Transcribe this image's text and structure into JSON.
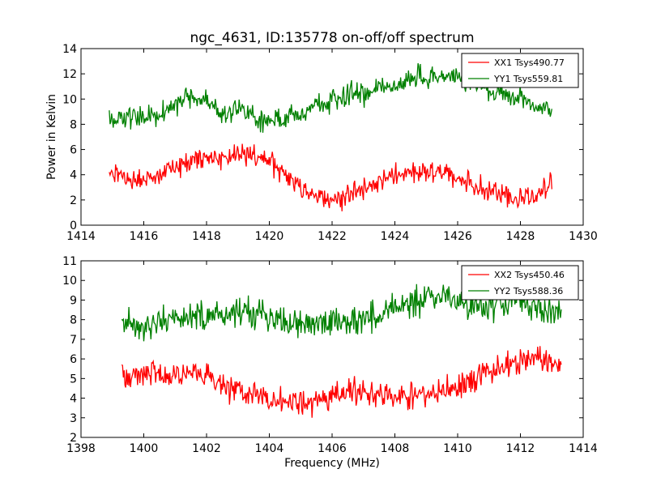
{
  "title": "ngc_4631, ID:135778 on-off/off spectrum",
  "chart_data": [
    {
      "type": "line",
      "title": "ngc_4631, ID:135778 on-off/off spectrum",
      "xlabel": "",
      "ylabel": "Power in Kelvin",
      "xlim": [
        1414,
        1430
      ],
      "ylim": [
        0,
        14
      ],
      "xticks": [
        "1414",
        "1416",
        "1418",
        "1420",
        "1422",
        "1424",
        "1426",
        "1428",
        "1430"
      ],
      "yticks": [
        "0",
        "2",
        "4",
        "6",
        "8",
        "10",
        "12",
        "14"
      ],
      "grid": false,
      "legend": "top-right",
      "x_range": [
        1414.9,
        1429.0
      ],
      "series": [
        {
          "name": "XX1 Tsys490.77",
          "color": "#ff0000",
          "x": [
            1415.0,
            1415.5,
            1416.0,
            1416.5,
            1417.0,
            1417.5,
            1418.0,
            1418.5,
            1419.0,
            1419.5,
            1420.0,
            1420.5,
            1421.0,
            1421.5,
            1422.0,
            1422.5,
            1423.0,
            1423.5,
            1424.0,
            1424.5,
            1425.0,
            1425.5,
            1426.0,
            1426.5,
            1427.0,
            1427.5,
            1428.0,
            1428.5,
            1429.0
          ],
          "values": [
            4.0,
            3.8,
            3.6,
            3.8,
            4.5,
            5.3,
            5.4,
            5.3,
            5.6,
            5.4,
            5.0,
            4.2,
            3.0,
            2.4,
            2.0,
            2.3,
            2.9,
            3.4,
            3.9,
            4.2,
            4.3,
            4.2,
            3.8,
            3.2,
            2.7,
            2.2,
            2.0,
            2.3,
            3.3
          ],
          "noise": 0.75
        },
        {
          "name": "YY1 Tsys559.81",
          "color": "#008000",
          "x": [
            1415.0,
            1415.5,
            1416.0,
            1416.5,
            1417.0,
            1417.5,
            1418.0,
            1418.5,
            1419.0,
            1419.5,
            1420.0,
            1420.5,
            1421.0,
            1421.5,
            1422.0,
            1422.5,
            1423.0,
            1423.5,
            1424.0,
            1424.5,
            1425.0,
            1425.5,
            1426.0,
            1426.5,
            1427.0,
            1427.5,
            1428.0,
            1428.5,
            1429.0
          ],
          "values": [
            8.3,
            8.6,
            8.8,
            8.7,
            9.6,
            10.2,
            9.8,
            8.8,
            9.4,
            8.3,
            8.3,
            8.5,
            8.8,
            9.6,
            9.7,
            10.4,
            10.4,
            11.0,
            11.1,
            11.5,
            11.8,
            11.8,
            11.7,
            11.3,
            10.6,
            10.3,
            10.2,
            9.5,
            8.7
          ],
          "noise": 0.75
        }
      ]
    },
    {
      "type": "line",
      "title": "",
      "xlabel": "Frequency (MHz)",
      "ylabel": "",
      "xlim": [
        1398,
        1414
      ],
      "ylim": [
        2,
        11
      ],
      "xticks": [
        "1398",
        "1400",
        "1402",
        "1404",
        "1406",
        "1408",
        "1410",
        "1412",
        "1414"
      ],
      "yticks": [
        "2",
        "3",
        "4",
        "5",
        "6",
        "7",
        "8",
        "9",
        "10",
        "11"
      ],
      "grid": false,
      "legend": "top-right",
      "x_range": [
        1399.3,
        1413.3
      ],
      "series": [
        {
          "name": "XX2 Tsys450.46",
          "color": "#ff0000",
          "x": [
            1399.3,
            1399.8,
            1400.3,
            1400.8,
            1401.3,
            1401.8,
            1402.3,
            1402.8,
            1403.3,
            1403.8,
            1404.3,
            1404.8,
            1405.3,
            1405.8,
            1406.3,
            1406.8,
            1407.3,
            1407.8,
            1408.3,
            1408.8,
            1409.3,
            1409.8,
            1410.3,
            1410.8,
            1411.3,
            1411.8,
            1412.3,
            1412.8,
            1413.3
          ],
          "values": [
            5.3,
            5.2,
            5.3,
            5.1,
            5.3,
            5.2,
            4.9,
            4.6,
            4.3,
            4.0,
            3.8,
            3.6,
            3.7,
            4.0,
            4.2,
            4.3,
            4.2,
            4.1,
            4.1,
            4.1,
            4.3,
            4.5,
            4.9,
            5.2,
            5.5,
            5.8,
            5.9,
            6.0,
            5.6
          ],
          "noise": 0.6
        },
        {
          "name": "YY2 Tsys588.36",
          "color": "#008000",
          "x": [
            1399.3,
            1399.8,
            1400.3,
            1400.8,
            1401.3,
            1401.8,
            1402.3,
            1402.8,
            1403.3,
            1403.8,
            1404.3,
            1404.8,
            1405.3,
            1405.8,
            1406.3,
            1406.8,
            1407.3,
            1407.8,
            1408.3,
            1408.8,
            1409.3,
            1409.8,
            1410.3,
            1410.8,
            1411.3,
            1411.8,
            1412.3,
            1412.8,
            1413.3
          ],
          "values": [
            7.8,
            7.6,
            7.8,
            8.0,
            8.1,
            8.2,
            8.3,
            8.3,
            8.3,
            8.2,
            8.0,
            7.7,
            7.6,
            7.7,
            7.9,
            7.9,
            8.2,
            8.4,
            8.7,
            9.0,
            9.1,
            9.0,
            8.7,
            8.6,
            8.8,
            8.9,
            8.7,
            8.5,
            8.3
          ],
          "noise": 0.65
        }
      ]
    }
  ]
}
